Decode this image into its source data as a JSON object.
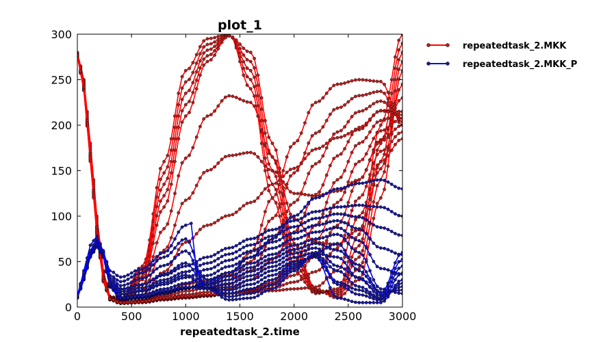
{
  "chart_data": {
    "type": "line",
    "title": "plot_1",
    "xlabel": "repeatedtask_2.time",
    "ylabel": "",
    "xlim": [
      0,
      3000
    ],
    "ylim": [
      0,
      300
    ],
    "x_ticks": [
      "0",
      "500",
      "1000",
      "1500",
      "2000",
      "2500",
      "3000"
    ],
    "y_ticks": [
      "0",
      "50",
      "100",
      "150",
      "200",
      "250",
      "300"
    ],
    "legend_position": "outside-right-top",
    "grid": false,
    "marker": "circle",
    "series": [
      {
        "name": "repeatedtask_2.MKK",
        "color": "#ff0000",
        "marker_fill": "#b02020",
        "representative_curves": [
          {
            "x": [
              0,
              60,
              120,
              180,
              240,
              300,
              400,
              600,
              800,
              1000,
              1200,
              1400,
              1600,
              1800,
              2000,
              2200,
              2400,
              2600,
              2800,
              3000
            ],
            "y": [
              280,
              250,
              180,
              100,
              40,
              12,
              8,
              45,
              160,
              260,
              295,
              300,
              240,
              120,
              40,
              15,
              20,
              80,
              200,
              300
            ]
          },
          {
            "x": [
              0,
              60,
              120,
              180,
              240,
              300,
              400,
              600,
              800,
              1000,
              1200,
              1400,
              1600,
              1800,
              2000,
              2200,
              2400,
              2600,
              2800,
              3000
            ],
            "y": [
              275,
              245,
              170,
              90,
              35,
              10,
              6,
              30,
              110,
              210,
              270,
              298,
              280,
              180,
              70,
              20,
              10,
              30,
              120,
              260
            ]
          },
          {
            "x": [
              0,
              60,
              120,
              180,
              240,
              300,
              400,
              600,
              800,
              1000,
              1200,
              1400,
              1600,
              1800,
              2000,
              2200,
              2400,
              2600,
              2800,
              3000
            ],
            "y": [
              278,
              240,
              165,
              85,
              30,
              9,
              5,
              8,
              15,
              25,
              30,
              35,
              60,
              120,
              180,
              225,
              245,
              250,
              248,
              200
            ]
          },
          {
            "x": [
              0,
              60,
              120,
              180,
              240,
              300,
              400,
              600,
              800,
              1000,
              1200,
              1400,
              1600,
              1800,
              2000,
              2200,
              2400,
              2600,
              2800,
              3000
            ],
            "y": [
              276,
              238,
              160,
              80,
              28,
              8,
              4,
              5,
              8,
              10,
              12,
              15,
              20,
              30,
              50,
              90,
              140,
              180,
              205,
              215
            ]
          },
          {
            "x": [
              0,
              60,
              120,
              180,
              240,
              300,
              400,
              600,
              800,
              1000,
              1200,
              1400,
              1600,
              1800,
              2000,
              2200,
              2400,
              2600,
              2800,
              3000
            ],
            "y": [
              277,
              242,
              168,
              88,
              32,
              9,
              5,
              6,
              10,
              12,
              14,
              15,
              16,
              18,
              20,
              22,
              40,
              100,
              160,
              185
            ]
          }
        ]
      },
      {
        "name": "repeatedtask_2.MKK_P",
        "color": "#0000ff",
        "marker_fill": "#1a1a8c",
        "representative_curves": [
          {
            "x": [
              0,
              60,
              120,
              180,
              240,
              300,
              400,
              600,
              800,
              1000,
              1050,
              1100,
              1200,
              1400,
              1600,
              1800,
              2000,
              2200,
              2400,
              2600,
              2800,
              3000
            ],
            "y": [
              12,
              40,
              68,
              78,
              60,
              40,
              33,
              42,
              60,
              90,
              92,
              40,
              30,
              38,
              55,
              75,
              100,
              120,
              130,
              136,
              140,
              130
            ]
          },
          {
            "x": [
              0,
              60,
              120,
              180,
              240,
              300,
              400,
              600,
              800,
              1000,
              1200,
              1400,
              1600,
              1800,
              2000,
              2200,
              2400,
              2600,
              2800,
              3000
            ],
            "y": [
              14,
              35,
              60,
              72,
              58,
              30,
              20,
              25,
              35,
              45,
              55,
              65,
              75,
              85,
              95,
              105,
              110,
              112,
              110,
              100
            ]
          },
          {
            "x": [
              0,
              60,
              120,
              180,
              240,
              300,
              400,
              600,
              800,
              1000,
              1200,
              1400,
              1600,
              1800,
              2000,
              2200,
              2400,
              2600,
              2800,
              3000
            ],
            "y": [
              10,
              30,
              55,
              66,
              55,
              22,
              8,
              10,
              15,
              20,
              28,
              38,
              48,
              58,
              68,
              75,
              80,
              60,
              20,
              15
            ]
          },
          {
            "x": [
              0,
              60,
              120,
              180,
              240,
              300,
              400,
              600,
              800,
              1000,
              1200,
              1400,
              1600,
              1800,
              2000,
              2200,
              2400,
              2600,
              2800,
              3000
            ],
            "y": [
              11,
              32,
              58,
              70,
              56,
              25,
              10,
              12,
              18,
              22,
              20,
              22,
              30,
              40,
              50,
              55,
              10,
              5,
              5,
              30
            ]
          },
          {
            "x": [
              0,
              60,
              120,
              180,
              240,
              300,
              400,
              600,
              800,
              1000,
              1200,
              1400,
              1600,
              1800,
              2000,
              2200,
              2400,
              2600,
              2800,
              3000
            ],
            "y": [
              13,
              38,
              62,
              75,
              62,
              35,
              28,
              38,
              55,
              75,
              20,
              8,
              10,
              20,
              40,
              60,
              70,
              40,
              15,
              60
            ]
          }
        ]
      }
    ]
  }
}
